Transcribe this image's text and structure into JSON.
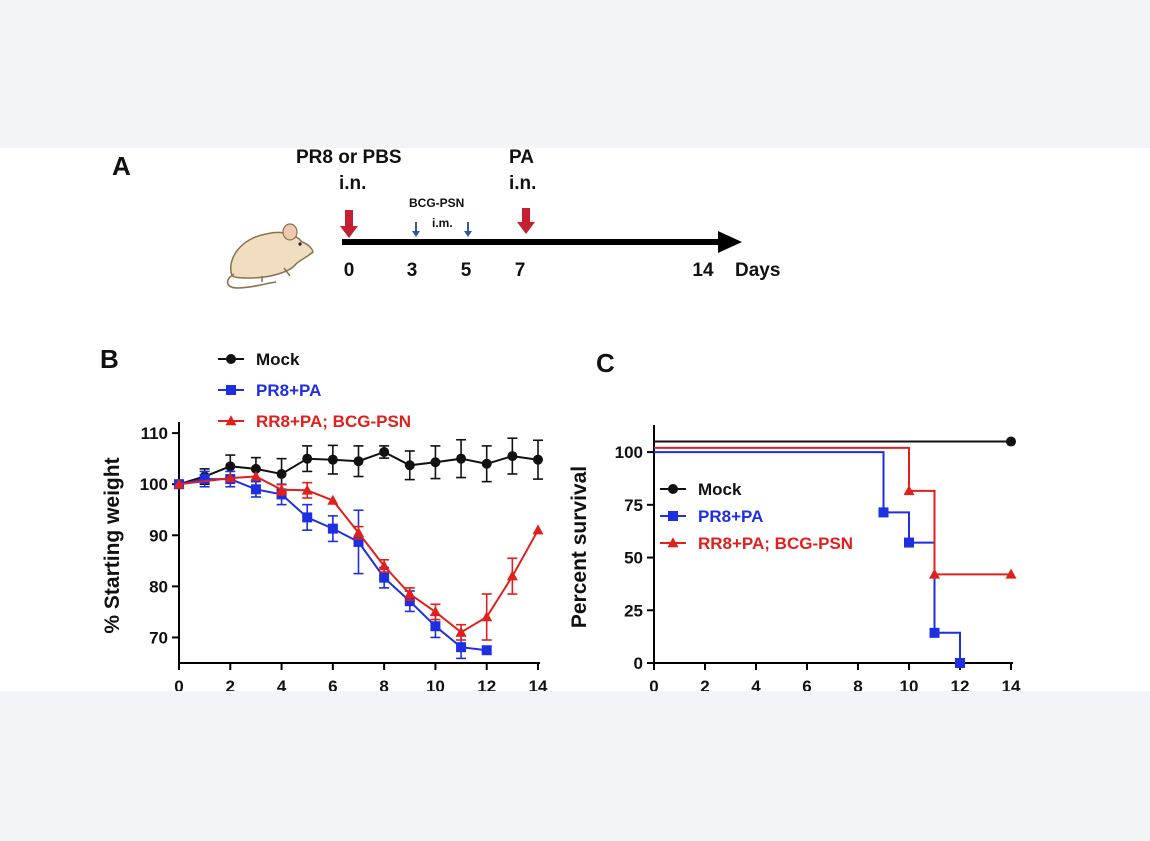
{
  "panel_a": {
    "letter": "A",
    "infection_label_line1": "PR8 or PBS",
    "infection_label_line2": "i.n.",
    "vaccine_label_line1": "BCG-PSN",
    "vaccine_label_line2": "i.m.",
    "challenge_label_line1": "PA",
    "challenge_label_line2": "i.n.",
    "day_ticks": [
      "0",
      "3",
      "5",
      "7",
      "14"
    ],
    "axis_unit": "Days",
    "icon": "mouse-icon"
  },
  "colors": {
    "mock": "#111111",
    "pr8pa": "#1d2fe0",
    "rr8pa": "#e0201c",
    "arrow_big": "#c4202f",
    "arrow_small": "#2f5a9a"
  },
  "chart_data": [
    {
      "panel": "B",
      "type": "line",
      "ylabel": "% Starting weight",
      "xlabel": "",
      "xlim": [
        0,
        14
      ],
      "ylim": [
        65,
        111
      ],
      "xticks": [
        "0",
        "2",
        "4",
        "6",
        "8",
        "10",
        "12",
        "14"
      ],
      "yticks": [
        "70",
        "80",
        "90",
        "100",
        "110"
      ],
      "legend_position": "top-left",
      "series": [
        {
          "name": "Mock",
          "marker": "circle",
          "x": [
            0,
            1,
            2,
            3,
            4,
            5,
            6,
            7,
            8,
            9,
            10,
            11,
            12,
            13,
            14
          ],
          "y": [
            100,
            101.5,
            103.5,
            103,
            102,
            105,
            104.8,
            104.5,
            106.3,
            103.7,
            104.3,
            105,
            104,
            105.5,
            104.8
          ],
          "err": [
            0,
            1.5,
            2.2,
            2.2,
            3,
            2.5,
            2.8,
            3,
            1.2,
            2.8,
            3.2,
            3.7,
            3.5,
            3.5,
            3.8
          ]
        },
        {
          "name": "PR8+PA",
          "marker": "square",
          "x": [
            0,
            1,
            2,
            3,
            4,
            5,
            6,
            7,
            8,
            9,
            10,
            11,
            12
          ],
          "y": [
            100,
            101,
            101,
            99,
            98,
            93.5,
            91.3,
            88.7,
            81.7,
            77.1,
            72.2,
            68.1,
            67.5
          ],
          "err": [
            0,
            1.5,
            1.5,
            1.5,
            2,
            2.5,
            2.5,
            6.2,
            2,
            2,
            2.2,
            2.2,
            0
          ]
        },
        {
          "name": "RR8+PA; BCG-PSN",
          "marker": "triangle",
          "x": [
            0,
            2,
            3,
            4,
            5,
            6,
            7,
            8,
            9,
            10,
            11,
            12,
            13,
            14
          ],
          "y": [
            100,
            101.2,
            101.5,
            98.9,
            98.8,
            96.8,
            90.5,
            84,
            78.5,
            75,
            71,
            74,
            82,
            91
          ],
          "err": [
            0,
            0,
            0,
            1,
            1.5,
            0,
            1.2,
            1.2,
            1.2,
            1.5,
            1.5,
            4.5,
            3.5,
            0
          ]
        }
      ]
    },
    {
      "panel": "C",
      "type": "line",
      "ylabel": "Percent survival",
      "xlabel": "",
      "xlim": [
        0,
        14
      ],
      "ylim": [
        0,
        110
      ],
      "xticks": [
        "0",
        "2",
        "4",
        "6",
        "8",
        "10",
        "12",
        "14"
      ],
      "yticks": [
        "0",
        "25",
        "50",
        "75",
        "100"
      ],
      "legend_position": "center-left",
      "series": [
        {
          "name": "Mock",
          "marker": "circle",
          "steps": [
            [
              0,
              105
            ],
            [
              14,
              105
            ]
          ],
          "markers": [
            [
              14,
              105
            ]
          ]
        },
        {
          "name": "PR8+PA",
          "marker": "square",
          "steps": [
            [
              0,
              100
            ],
            [
              9,
              71.4
            ],
            [
              10,
              57.1
            ],
            [
              11,
              14.3
            ],
            [
              12,
              0
            ]
          ],
          "markers": [
            [
              9,
              71.4
            ],
            [
              10,
              57.1
            ],
            [
              11,
              14.3
            ],
            [
              12,
              0
            ]
          ]
        },
        {
          "name": "RR8+PA; BCG-PSN",
          "marker": "triangle",
          "steps": [
            [
              0,
              102
            ],
            [
              10,
              81.6
            ],
            [
              11,
              42
            ],
            [
              14,
              42
            ]
          ],
          "markers": [
            [
              10,
              81.6
            ],
            [
              11,
              42
            ],
            [
              14,
              42
            ]
          ]
        }
      ]
    }
  ]
}
